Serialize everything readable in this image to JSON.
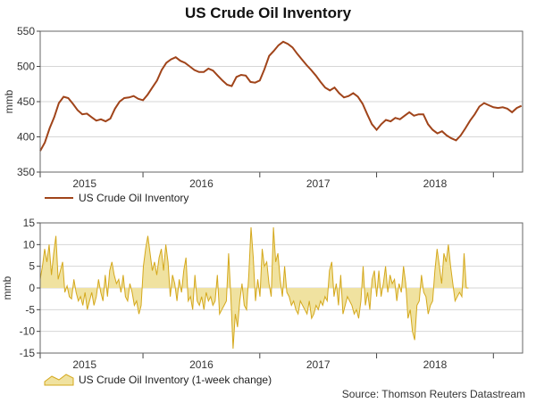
{
  "title": "US Crude Oil Inventory",
  "source": "Source: Thomson Reuters Datastream",
  "colors": {
    "inventory_line": "#a0441a",
    "change_fill": "#f0e2a0",
    "change_line": "#d4a81c",
    "grid": "#d6d6d6",
    "axis": "#444444"
  },
  "chart_data": [
    {
      "type": "line",
      "ylabel": "mmb",
      "ylim": [
        350,
        550
      ],
      "yticks": [
        350,
        400,
        450,
        500,
        550
      ],
      "xlim": [
        2014.62,
        2018.75
      ],
      "xticks": [
        {
          "label": "2015",
          "value": 2015.0
        },
        {
          "label": "2016",
          "value": 2016.0
        },
        {
          "label": "2017",
          "value": 2017.0
        },
        {
          "label": "2018",
          "value": 2018.0
        }
      ],
      "year_separators": [
        2015.5,
        2016.5,
        2017.5,
        2018.5
      ],
      "grid": true,
      "legend": "bottom-left",
      "series": [
        {
          "name": "US Crude Oil Inventory",
          "x": [
            2014.62,
            2014.66,
            2014.7,
            2014.74,
            2014.78,
            2014.82,
            2014.86,
            2014.9,
            2014.94,
            2014.98,
            2015.02,
            2015.06,
            2015.1,
            2015.14,
            2015.18,
            2015.22,
            2015.26,
            2015.3,
            2015.34,
            2015.38,
            2015.42,
            2015.46,
            2015.5,
            2015.54,
            2015.58,
            2015.62,
            2015.66,
            2015.7,
            2015.74,
            2015.78,
            2015.82,
            2015.86,
            2015.9,
            2015.94,
            2015.98,
            2016.02,
            2016.06,
            2016.1,
            2016.14,
            2016.18,
            2016.22,
            2016.26,
            2016.3,
            2016.34,
            2016.38,
            2016.42,
            2016.46,
            2016.5,
            2016.54,
            2016.58,
            2016.62,
            2016.66,
            2016.7,
            2016.74,
            2016.78,
            2016.82,
            2016.86,
            2016.9,
            2016.94,
            2016.98,
            2017.02,
            2017.06,
            2017.1,
            2017.14,
            2017.18,
            2017.22,
            2017.26,
            2017.3,
            2017.34,
            2017.38,
            2017.42,
            2017.46,
            2017.5,
            2017.54,
            2017.58,
            2017.62,
            2017.66,
            2017.7,
            2017.74,
            2017.78,
            2017.82,
            2017.86,
            2017.9,
            2017.94,
            2017.98,
            2018.02,
            2018.06,
            2018.1,
            2018.14,
            2018.18,
            2018.22,
            2018.26,
            2018.3,
            2018.34,
            2018.38,
            2018.42,
            2018.46,
            2018.5,
            2018.54,
            2018.58,
            2018.62,
            2018.66,
            2018.7,
            2018.74
          ],
          "y": [
            380,
            392,
            412,
            428,
            448,
            457,
            455,
            447,
            438,
            432,
            433,
            428,
            423,
            425,
            422,
            426,
            440,
            450,
            455,
            456,
            458,
            454,
            452,
            460,
            470,
            480,
            495,
            505,
            510,
            513,
            508,
            505,
            500,
            495,
            492,
            492,
            497,
            494,
            487,
            480,
            474,
            472,
            485,
            488,
            487,
            478,
            477,
            480,
            496,
            515,
            522,
            530,
            535,
            532,
            527,
            518,
            510,
            502,
            495,
            487,
            478,
            470,
            466,
            470,
            462,
            456,
            458,
            462,
            457,
            447,
            432,
            418,
            410,
            418,
            424,
            422,
            427,
            425,
            430,
            435,
            430,
            432,
            432,
            418,
            410,
            405,
            408,
            402,
            398,
            395,
            402,
            412,
            423,
            432,
            443,
            448,
            445,
            442,
            441,
            442,
            440,
            435,
            441,
            444
          ]
        }
      ]
    },
    {
      "type": "area",
      "ylabel": "mmb",
      "ylim": [
        -15,
        15
      ],
      "yticks": [
        -15,
        -10,
        -5,
        0,
        5,
        10,
        15
      ],
      "xlim": [
        2014.62,
        2018.75
      ],
      "xticks": [
        {
          "label": "2015",
          "value": 2015.0
        },
        {
          "label": "2016",
          "value": 2016.0
        },
        {
          "label": "2017",
          "value": 2017.0
        },
        {
          "label": "2018",
          "value": 2018.0
        }
      ],
      "year_separators": [
        2015.5,
        2016.5,
        2017.5,
        2018.5
      ],
      "grid": true,
      "legend": "bottom-left",
      "series": [
        {
          "name": "US Crude Oil Inventory (1-week change)",
          "x_start": 2014.62,
          "x_step": 0.0192,
          "values": [
            2,
            5,
            9,
            6,
            10,
            3,
            8,
            12,
            2,
            4,
            6,
            -1,
            0.5,
            -2,
            -2.5,
            2,
            -1,
            -3,
            -2,
            -4,
            -1,
            -5,
            -3,
            -1,
            -4,
            -2,
            2,
            -1,
            -3,
            3,
            -2,
            4,
            6,
            3,
            1,
            2,
            -1,
            3,
            -2,
            -3,
            1,
            -1,
            -4,
            -3,
            -6,
            -4,
            5,
            9,
            12,
            8,
            4,
            6,
            3,
            7,
            9,
            4,
            10,
            6,
            -2,
            3,
            1,
            -3,
            2,
            -1,
            4,
            7,
            -3,
            -2,
            -5,
            3,
            -3,
            -4,
            -2,
            -5,
            -1,
            -3,
            -2,
            -4,
            -3,
            3,
            -6,
            -5,
            -4,
            -3,
            8,
            -2,
            -14,
            -6,
            -9,
            -3,
            1,
            -4,
            -5,
            3,
            14,
            7,
            -3,
            2,
            -2,
            9,
            5,
            6,
            1,
            -2,
            14,
            6,
            8,
            2,
            -2,
            5,
            -1,
            -2,
            -4,
            -3,
            -5,
            -6,
            -3,
            -4,
            -5,
            -6,
            -3,
            -7,
            -6,
            -4,
            -5,
            -3,
            -4,
            -2,
            -3,
            4,
            6,
            -2,
            1,
            -4,
            3,
            -6,
            -4,
            -2,
            -3,
            -4,
            -6,
            -5,
            -7,
            -3,
            5,
            -4,
            -1,
            -5,
            2,
            4,
            -2,
            4,
            -2,
            1,
            5,
            -1,
            3,
            1,
            2,
            -3,
            1,
            -1,
            5,
            1,
            -7,
            -5,
            -10,
            -12,
            -4,
            -3,
            3,
            -1,
            -2,
            -6,
            -4,
            -3,
            4,
            9,
            5,
            1,
            8,
            6,
            10,
            5,
            1,
            -3,
            -2,
            -1,
            -2,
            8,
            0,
            0
          ]
        }
      ]
    }
  ]
}
